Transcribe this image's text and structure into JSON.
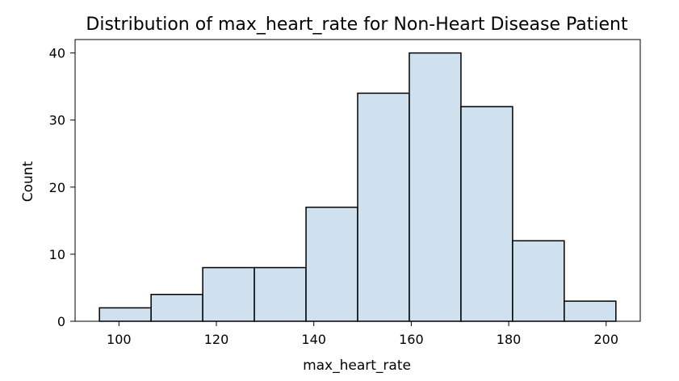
{
  "chart_data": {
    "type": "bar",
    "title": "Distribution of max_heart_rate for Non-Heart Disease Patient",
    "xlabel": "max_heart_rate",
    "ylabel": "Count",
    "xlim": [
      91,
      207
    ],
    "ylim": [
      0,
      42
    ],
    "xticks": [
      100,
      120,
      140,
      160,
      180,
      200
    ],
    "yticks": [
      0,
      10,
      20,
      30,
      40
    ],
    "grid": false,
    "bins": [
      {
        "x0": 96.0,
        "x1": 106.6,
        "count": 2
      },
      {
        "x0": 106.6,
        "x1": 117.2,
        "count": 4
      },
      {
        "x0": 117.2,
        "x1": 127.8,
        "count": 8
      },
      {
        "x0": 127.8,
        "x1": 138.4,
        "count": 8
      },
      {
        "x0": 138.4,
        "x1": 149.0,
        "count": 17
      },
      {
        "x0": 149.0,
        "x1": 159.6,
        "count": 34
      },
      {
        "x0": 159.6,
        "x1": 170.2,
        "count": 40
      },
      {
        "x0": 170.2,
        "x1": 180.8,
        "count": 32
      },
      {
        "x0": 180.8,
        "x1": 191.4,
        "count": 12
      },
      {
        "x0": 191.4,
        "x1": 202.0,
        "count": 3
      }
    ],
    "colors": {
      "bar_fill": "#cfe0ee",
      "bar_edge": "#000000"
    }
  }
}
